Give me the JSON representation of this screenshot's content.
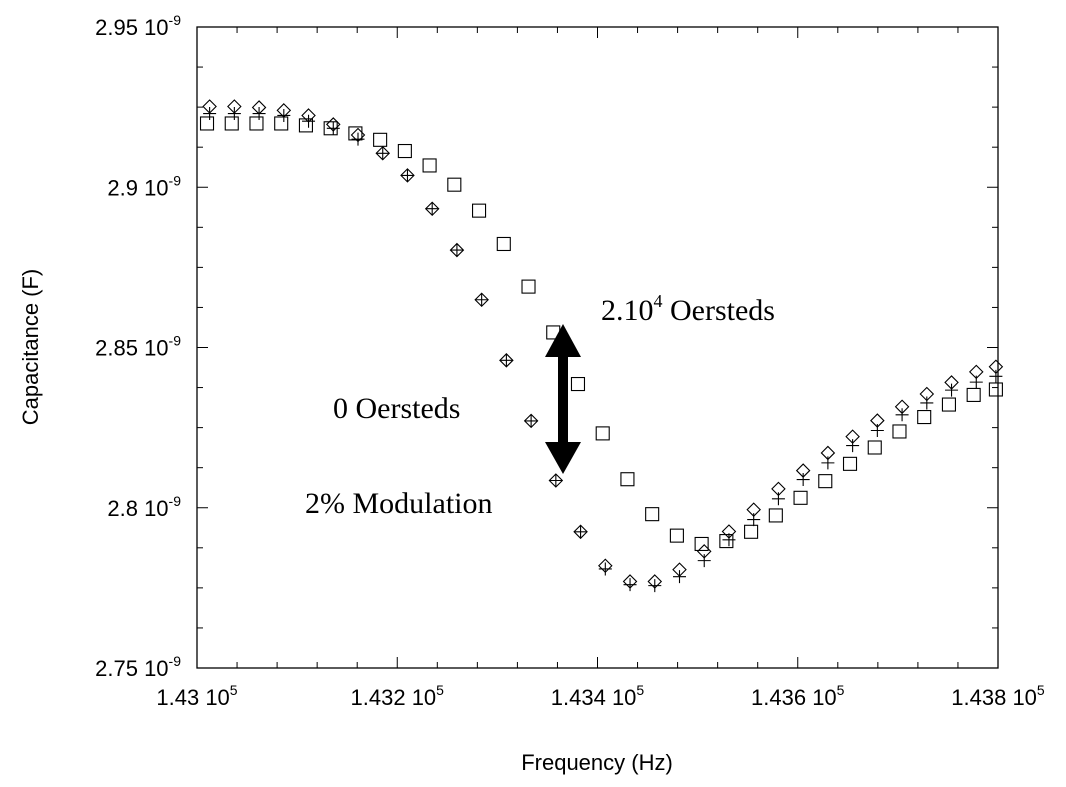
{
  "chart_data": {
    "type": "scatter",
    "xlabel": "Frequency (Hz)",
    "ylabel": "Capacitance (F)",
    "xlim": [
      143000,
      143800
    ],
    "ylim": [
      2.75e-09,
      2.95e-09
    ],
    "xticks": [
      {
        "value": 143000,
        "mantissa": "1.43 10",
        "exp": "5"
      },
      {
        "value": 143200,
        "mantissa": "1.432 10",
        "exp": "5"
      },
      {
        "value": 143400,
        "mantissa": "1.434 10",
        "exp": "5"
      },
      {
        "value": 143600,
        "mantissa": "1.436 10",
        "exp": "5"
      },
      {
        "value": 143800,
        "mantissa": "1.438 10",
        "exp": "5"
      }
    ],
    "yticks": [
      {
        "value": 2.75e-09,
        "mantissa": "2.75 10",
        "exp": "-9"
      },
      {
        "value": 2.8e-09,
        "mantissa": "2.8 10",
        "exp": "-9"
      },
      {
        "value": 2.85e-09,
        "mantissa": "2.85 10",
        "exp": "-9"
      },
      {
        "value": 2.9e-09,
        "mantissa": "2.9 10",
        "exp": "-9"
      },
      {
        "value": 2.95e-09,
        "mantissa": "2.95 10",
        "exp": "-9"
      }
    ],
    "grid": false,
    "series": [
      {
        "marker": "diamond",
        "x": [
          143012.6,
          143037.3,
          143062.0,
          143086.7,
          143111.4,
          143136.1,
          143160.8,
          143185.5,
          143210.2,
          143234.9,
          143259.6,
          143284.3,
          143309.0,
          143333.7,
          143358.4,
          143383.1,
          143407.8,
          143432.5,
          143457.2,
          143481.9,
          143506.6,
          143531.3,
          143556.0,
          143580.7,
          143605.4,
          143630.1,
          143654.8,
          143679.5,
          143704.2,
          143728.9,
          143753.6,
          143778.3,
          143797.9
        ],
        "y": [
          2.9252e-09,
          2.9252e-09,
          2.9249e-09,
          2.924e-09,
          2.9224e-09,
          2.9196e-09,
          2.9163e-09,
          2.9106e-09,
          2.9037e-09,
          2.8933e-09,
          2.8804e-09,
          2.8649e-09,
          2.846e-09,
          2.8271e-09,
          2.8085e-09,
          2.7925e-09,
          2.7819e-09,
          2.777e-09,
          2.777e-09,
          2.7807e-09,
          2.7864e-09,
          2.7926e-09,
          2.7994e-09,
          2.8059e-09,
          2.8116e-09,
          2.8171e-09,
          2.8222e-09,
          2.8272e-09,
          2.8315e-09,
          2.8355e-09,
          2.8391e-09,
          2.8424e-09,
          2.844e-09
        ]
      },
      {
        "marker": "plus",
        "x": [
          143012.6,
          143037.3,
          143062.0,
          143086.7,
          143111.4,
          143136.1,
          143160.8,
          143185.5,
          143210.2,
          143234.9,
          143259.6,
          143284.3,
          143309.0,
          143333.7,
          143358.4,
          143383.1,
          143407.8,
          143432.5,
          143457.2,
          143481.9,
          143506.6,
          143531.3,
          143556.0,
          143580.7,
          143605.4,
          143630.1,
          143654.8,
          143679.5,
          143704.2,
          143728.9,
          143753.6,
          143778.3,
          143797.9
        ],
        "y": [
          2.923e-09,
          2.923e-09,
          2.923e-09,
          2.9224e-09,
          2.9206e-09,
          2.9184e-09,
          2.915e-09,
          2.9106e-09,
          2.9037e-09,
          2.8933e-09,
          2.8804e-09,
          2.8649e-09,
          2.846e-09,
          2.8271e-09,
          2.8085e-09,
          2.7925e-09,
          2.7809e-09,
          2.776e-09,
          2.7757e-09,
          2.7785e-09,
          2.7835e-09,
          2.79e-09,
          2.7963e-09,
          2.8028e-09,
          2.8088e-09,
          2.814e-09,
          2.8194e-09,
          2.8241e-09,
          2.829e-09,
          2.8327e-09,
          2.8367e-09,
          2.8392e-09,
          2.841e-09
        ]
      },
      {
        "marker": "square",
        "x": [
          143010.0,
          143034.7,
          143059.4,
          143084.1,
          143108.8,
          143133.5,
          143158.2,
          143182.9,
          143207.6,
          143232.3,
          143257.0,
          143281.7,
          143306.4,
          143331.1,
          143355.8,
          143380.5,
          143405.2,
          143429.9,
          143454.6,
          143479.3,
          143504.0,
          143528.7,
          143553.4,
          143578.1,
          143602.8,
          143627.5,
          143652.2,
          143676.9,
          143701.6,
          143726.3,
          143751.0,
          143775.7,
          143797.9
        ],
        "y": [
          2.9199e-09,
          2.9199e-09,
          2.9199e-09,
          2.9199e-09,
          2.9193e-09,
          2.9184e-09,
          2.9168e-09,
          2.9148e-09,
          2.9113e-09,
          2.9068e-09,
          2.9008e-09,
          2.8927e-09,
          2.8823e-09,
          2.869e-09,
          2.8547e-09,
          2.8386e-09,
          2.8232e-09,
          2.8089e-09,
          2.798e-09,
          2.7913e-09,
          2.7887e-09,
          2.7896e-09,
          2.7925e-09,
          2.7976e-09,
          2.8031e-09,
          2.8083e-09,
          2.8137e-09,
          2.8188e-09,
          2.8238e-09,
          2.8283e-09,
          2.8322e-09,
          2.8352e-09,
          2.8369e-09
        ]
      }
    ],
    "annotations": {
      "upper_prefix": "2.10",
      "upper_exp": "4",
      "upper_suffix": " Oersteds",
      "middle": "0 Oersteds",
      "lower": "2% Modulation"
    }
  }
}
